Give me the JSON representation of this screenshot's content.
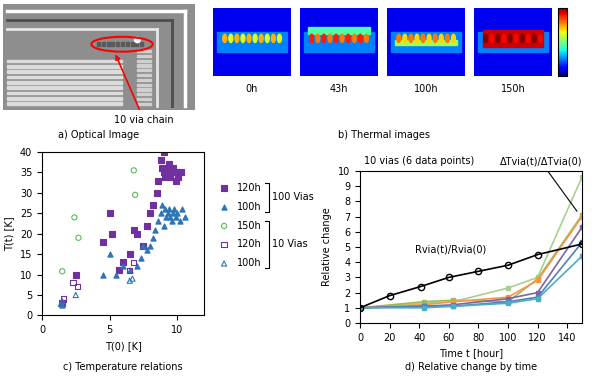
{
  "optical_image": {
    "caption": "a) Optical Image",
    "annotation": "10 via chain"
  },
  "thermal_images": {
    "caption": "b) Thermal images",
    "frames": [
      "0h",
      "43h",
      "100h",
      "150h"
    ]
  },
  "chart_data": [
    {
      "type": "scatter",
      "title": "c) Temperature relations",
      "x_label": "T(0) [K]",
      "y_label": "T(t) [K]",
      "xlim": [
        0,
        12
      ],
      "xticks": [
        0,
        5,
        10
      ],
      "ylim": [
        0,
        40
      ],
      "yticks": [
        0,
        5,
        10,
        15,
        20,
        25,
        30,
        35,
        40
      ],
      "legend": "right",
      "groups": [
        {
          "label": "100 Vias",
          "series": [
            {
              "name": "120h",
              "color": "#7030a0",
              "marker": "square",
              "x": [
                1.5,
                2.5,
                4.5,
                5.0,
                5.2,
                5.7,
                6.0,
                6.5,
                6.8,
                7.0,
                7.5,
                7.8,
                8.0,
                8.2,
                8.5,
                8.6,
                8.8,
                8.9,
                9.0,
                9.0,
                9.1,
                9.2,
                9.3,
                9.4,
                9.5,
                9.6,
                9.7,
                9.8,
                9.9,
                10.0,
                10.1,
                10.3
              ],
              "values": [
                3,
                10,
                18,
                25,
                20,
                11,
                13,
                15,
                21,
                20,
                17,
                22,
                25,
                27,
                30,
                33,
                38,
                36,
                40,
                35,
                34,
                36,
                35,
                37,
                34,
                35,
                36,
                35,
                33,
                35,
                34,
                35
              ]
            },
            {
              "name": "100h",
              "color": "#2e75b6",
              "marker": "triangle",
              "x": [
                1.5,
                4.5,
                5.0,
                5.5,
                6.0,
                6.5,
                7.0,
                7.3,
                7.5,
                7.8,
                8.0,
                8.2,
                8.4,
                8.6,
                8.8,
                8.9,
                9.0,
                9.1,
                9.2,
                9.3,
                9.4,
                9.5,
                9.6,
                9.7,
                9.8,
                9.9,
                10.0,
                10.2,
                10.4,
                10.6
              ],
              "values": [
                2.5,
                10,
                15,
                10,
                12,
                11,
                12,
                14,
                17,
                16,
                17,
                19,
                21,
                23,
                25,
                27,
                22,
                26,
                24,
                25,
                26,
                24,
                23,
                25,
                26,
                24,
                25,
                23,
                26,
                24
              ]
            }
          ]
        },
        {
          "label": "10 Vias",
          "series": [
            {
              "name": "150h",
              "color": "#5cb85c",
              "marker": "open-circle",
              "x": [
                1.5,
                2.4,
                2.7,
                6.8,
                6.9
              ],
              "values": [
                10.8,
                24,
                19,
                35.5,
                29.5
              ]
            },
            {
              "name": "120h",
              "color": "#7030a0",
              "marker": "open-square",
              "x": [
                1.6,
                2.3,
                2.6,
                6.5,
                6.8
              ],
              "values": [
                4,
                8,
                7,
                11,
                13
              ]
            },
            {
              "name": "100h",
              "color": "#2e75b6",
              "marker": "open-triangle",
              "x": [
                1.4,
                1.5,
                2.5,
                6.5,
                6.7
              ],
              "values": [
                2.8,
                3.5,
                5,
                8.5,
                9
              ]
            }
          ]
        }
      ]
    },
    {
      "type": "line",
      "title": "d) Relative change by time",
      "x_label": "Time t [hour]",
      "y_label": "Relative change",
      "xlim": [
        0,
        150
      ],
      "xticks": [
        0,
        20,
        40,
        60,
        80,
        100,
        120,
        140
      ],
      "ylim": [
        0,
        10
      ],
      "yticks": [
        0,
        1,
        2,
        3,
        4,
        5,
        6,
        7,
        8,
        9,
        10
      ],
      "annotations": {
        "group": "10 vias (6 data points)",
        "resistance": "Rvia(t)/Rvia(0)",
        "thermal": "ΔTvia(t)/ΔTvia(0)"
      },
      "series": [
        {
          "color": "#a9d18e",
          "marker": "square",
          "line_style": "solid",
          "x": [
            0,
            43,
            63,
            100,
            120,
            150
          ],
          "values": [
            1,
            1.3,
            1.4,
            2.3,
            3.0,
            9.6
          ]
        },
        {
          "color": "#9bbb59",
          "marker": "square",
          "line_style": "solid",
          "x": [
            0,
            43,
            63,
            100,
            120,
            150
          ],
          "values": [
            1,
            1.4,
            1.5,
            1.4,
            2.9,
            7.1
          ]
        },
        {
          "color": "#f79646",
          "marker": "square",
          "line_style": "solid",
          "x": [
            0,
            43,
            63,
            100,
            120,
            150
          ],
          "values": [
            1,
            1.2,
            1.4,
            1.7,
            2.8,
            7.0
          ]
        },
        {
          "color": "#8064a2",
          "marker": "square",
          "line_style": "solid",
          "x": [
            0,
            43,
            63,
            100,
            120,
            150
          ],
          "values": [
            1,
            1.1,
            1.2,
            1.6,
            2.0,
            6.3
          ]
        },
        {
          "color": "#4f81bd",
          "marker": "square",
          "line_style": "solid",
          "x": [
            0,
            43,
            63,
            100,
            120,
            150
          ],
          "values": [
            1,
            1.1,
            1.1,
            1.4,
            1.7,
            5.3
          ]
        },
        {
          "color": "#4bacc6",
          "marker": "square",
          "line_style": "solid",
          "x": [
            0,
            43,
            63,
            100,
            120,
            150
          ],
          "values": [
            1,
            1.0,
            1.1,
            1.3,
            1.6,
            4.4
          ]
        },
        {
          "color": "#000000",
          "marker": "open-circle",
          "line_style": "solid",
          "x": [
            0,
            20,
            41,
            60,
            80,
            100,
            120,
            150
          ],
          "values": [
            1,
            1.8,
            2.4,
            3.0,
            3.4,
            3.8,
            4.5,
            5.2
          ]
        }
      ]
    }
  ]
}
